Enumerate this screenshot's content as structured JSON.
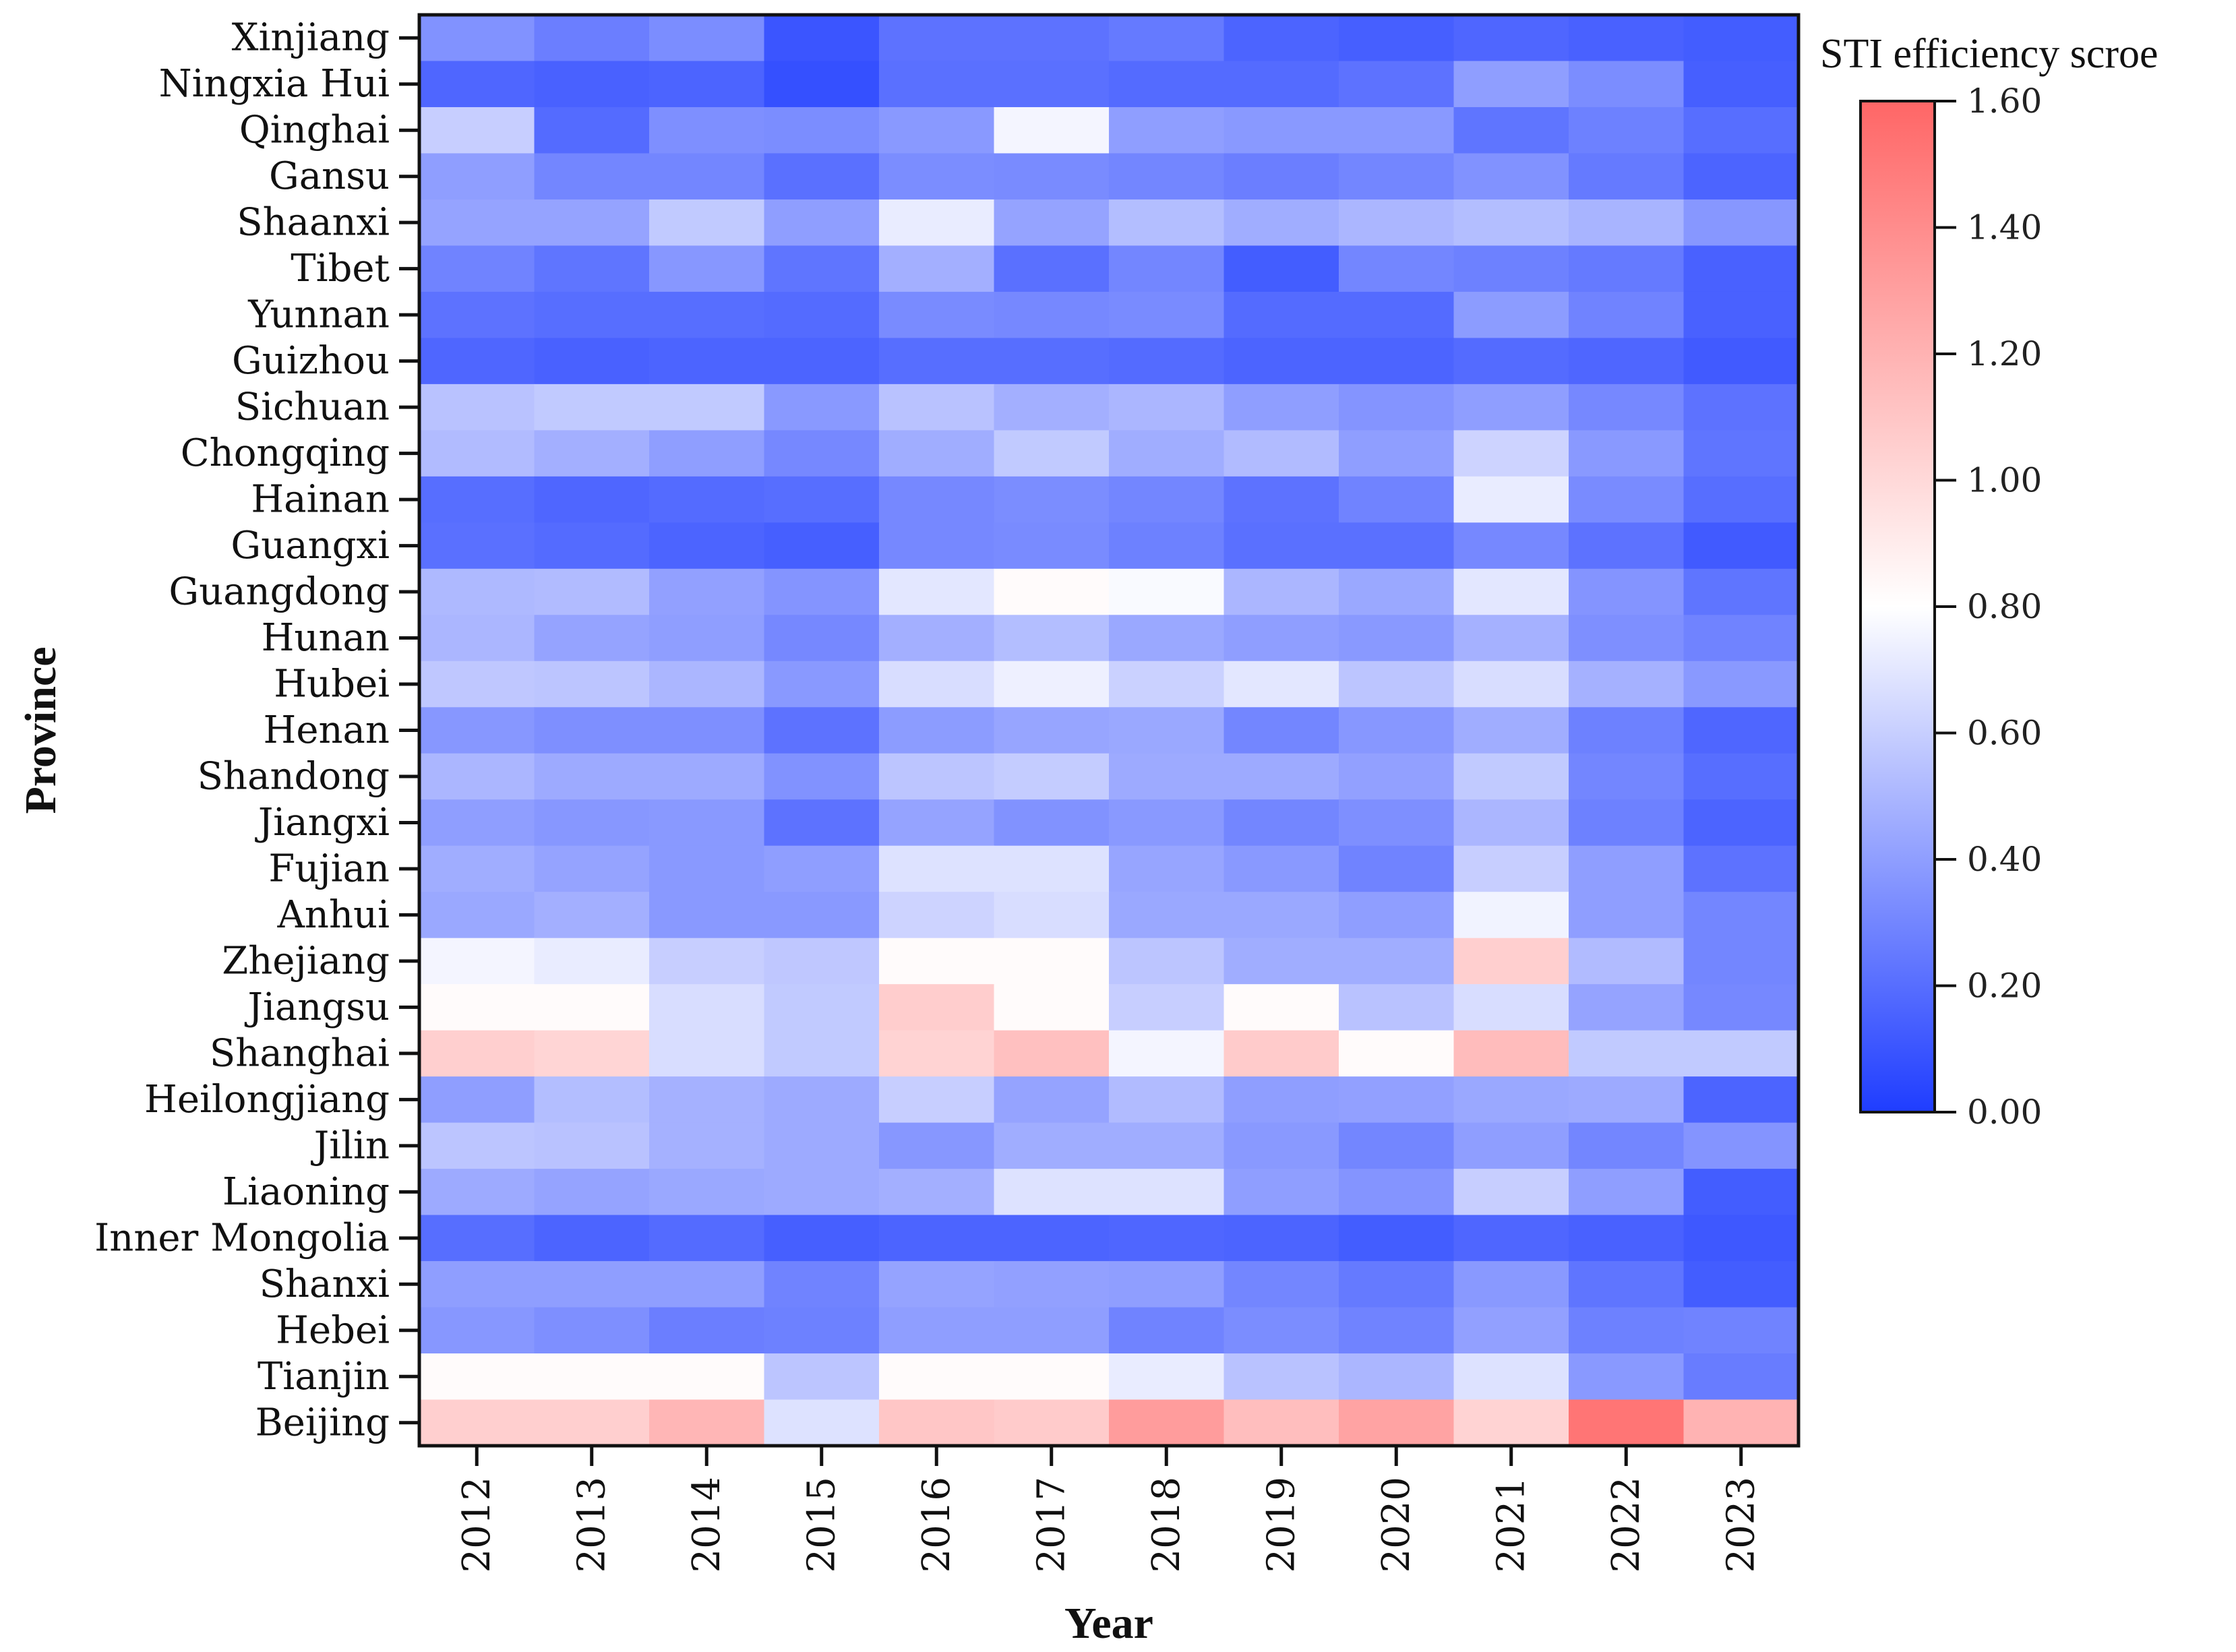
{
  "chart_data": {
    "type": "heatmap",
    "xlabel": "Year",
    "ylabel": "Province",
    "colorbar_title": "STI efficiency scroe",
    "colorbar_ticks": [
      "0.00",
      "0.20",
      "0.40",
      "0.60",
      "0.80",
      "1.00",
      "1.20",
      "1.40",
      "1.60"
    ],
    "colorbar_range": [
      0,
      1.6
    ],
    "colormap_stops": [
      {
        "value": 0.0,
        "color": "#1f3dff"
      },
      {
        "value": 0.8,
        "color": "#ffffff"
      },
      {
        "value": 1.6,
        "color": "#ff6666"
      }
    ],
    "x": [
      "2012",
      "2013",
      "2014",
      "2015",
      "2016",
      "2017",
      "2018",
      "2019",
      "2020",
      "2021",
      "2022",
      "2023"
    ],
    "y": [
      "Xinjiang",
      "Ningxia Hui",
      "Qinghai",
      "Gansu",
      "Shaanxi",
      "Tibet",
      "Yunnan",
      "Guizhou",
      "Sichuan",
      "Chongqing",
      "Hainan",
      "Guangxi",
      "Guangdong",
      "Hunan",
      "Hubei",
      "Henan",
      "Shandong",
      "Jiangxi",
      "Fujian",
      "Anhui",
      "Zhejiang",
      "Jiangsu",
      "Shanghai",
      "Heilongjiang",
      "Jilin",
      "Liaoning",
      "Inner Mongolia",
      "Shanxi",
      "Hebei",
      "Tianjin",
      "Beijing"
    ],
    "values": [
      [
        0.35,
        0.27,
        0.33,
        0.1,
        0.22,
        0.22,
        0.25,
        0.16,
        0.14,
        0.17,
        0.15,
        0.13
      ],
      [
        0.17,
        0.15,
        0.16,
        0.08,
        0.21,
        0.21,
        0.19,
        0.19,
        0.22,
        0.4,
        0.33,
        0.14
      ],
      [
        0.6,
        0.19,
        0.34,
        0.33,
        0.38,
        0.76,
        0.4,
        0.38,
        0.38,
        0.23,
        0.28,
        0.2
      ],
      [
        0.4,
        0.3,
        0.3,
        0.21,
        0.33,
        0.32,
        0.3,
        0.27,
        0.3,
        0.35,
        0.25,
        0.16
      ],
      [
        0.42,
        0.42,
        0.58,
        0.4,
        0.72,
        0.42,
        0.53,
        0.46,
        0.5,
        0.53,
        0.49,
        0.37
      ],
      [
        0.29,
        0.23,
        0.37,
        0.23,
        0.47,
        0.21,
        0.3,
        0.13,
        0.3,
        0.28,
        0.25,
        0.15
      ],
      [
        0.22,
        0.2,
        0.2,
        0.19,
        0.32,
        0.31,
        0.32,
        0.19,
        0.19,
        0.39,
        0.29,
        0.15
      ],
      [
        0.17,
        0.15,
        0.16,
        0.16,
        0.2,
        0.2,
        0.19,
        0.16,
        0.16,
        0.19,
        0.17,
        0.12
      ],
      [
        0.55,
        0.58,
        0.58,
        0.38,
        0.55,
        0.47,
        0.5,
        0.4,
        0.36,
        0.4,
        0.31,
        0.22
      ],
      [
        0.52,
        0.47,
        0.4,
        0.31,
        0.46,
        0.58,
        0.46,
        0.52,
        0.4,
        0.62,
        0.38,
        0.23
      ],
      [
        0.2,
        0.17,
        0.19,
        0.2,
        0.31,
        0.33,
        0.3,
        0.22,
        0.29,
        0.72,
        0.32,
        0.2
      ],
      [
        0.21,
        0.19,
        0.16,
        0.14,
        0.31,
        0.32,
        0.28,
        0.21,
        0.21,
        0.31,
        0.22,
        0.12
      ],
      [
        0.51,
        0.52,
        0.41,
        0.36,
        0.7,
        0.82,
        0.78,
        0.5,
        0.44,
        0.7,
        0.36,
        0.23
      ],
      [
        0.5,
        0.42,
        0.4,
        0.31,
        0.47,
        0.53,
        0.44,
        0.4,
        0.38,
        0.48,
        0.34,
        0.29
      ],
      [
        0.57,
        0.56,
        0.5,
        0.38,
        0.66,
        0.74,
        0.61,
        0.7,
        0.56,
        0.66,
        0.48,
        0.38
      ],
      [
        0.37,
        0.34,
        0.34,
        0.22,
        0.39,
        0.43,
        0.44,
        0.3,
        0.37,
        0.46,
        0.28,
        0.17
      ],
      [
        0.5,
        0.45,
        0.45,
        0.35,
        0.56,
        0.59,
        0.45,
        0.45,
        0.41,
        0.58,
        0.3,
        0.2
      ],
      [
        0.4,
        0.37,
        0.38,
        0.22,
        0.42,
        0.35,
        0.38,
        0.3,
        0.34,
        0.5,
        0.28,
        0.16
      ],
      [
        0.46,
        0.42,
        0.38,
        0.4,
        0.68,
        0.68,
        0.43,
        0.38,
        0.29,
        0.6,
        0.4,
        0.22
      ],
      [
        0.44,
        0.47,
        0.38,
        0.38,
        0.62,
        0.66,
        0.44,
        0.44,
        0.4,
        0.75,
        0.4,
        0.3
      ],
      [
        0.76,
        0.72,
        0.6,
        0.57,
        0.82,
        0.82,
        0.56,
        0.46,
        0.46,
        1.05,
        0.52,
        0.3
      ],
      [
        0.82,
        0.82,
        0.66,
        0.58,
        1.06,
        0.82,
        0.6,
        0.82,
        0.55,
        0.66,
        0.42,
        0.31
      ],
      [
        1.05,
        1.02,
        0.66,
        0.58,
        1.03,
        1.13,
        0.76,
        1.07,
        0.82,
        1.15,
        0.58,
        0.58
      ],
      [
        0.4,
        0.53,
        0.48,
        0.45,
        0.6,
        0.42,
        0.52,
        0.4,
        0.41,
        0.44,
        0.45,
        0.16
      ],
      [
        0.56,
        0.55,
        0.48,
        0.45,
        0.37,
        0.46,
        0.46,
        0.38,
        0.3,
        0.4,
        0.3,
        0.36
      ],
      [
        0.45,
        0.42,
        0.44,
        0.45,
        0.47,
        0.68,
        0.68,
        0.4,
        0.36,
        0.6,
        0.4,
        0.13
      ],
      [
        0.2,
        0.16,
        0.19,
        0.14,
        0.16,
        0.16,
        0.17,
        0.16,
        0.13,
        0.17,
        0.15,
        0.11
      ],
      [
        0.4,
        0.4,
        0.4,
        0.29,
        0.42,
        0.41,
        0.4,
        0.3,
        0.25,
        0.38,
        0.23,
        0.13
      ],
      [
        0.37,
        0.34,
        0.27,
        0.28,
        0.4,
        0.4,
        0.29,
        0.33,
        0.29,
        0.41,
        0.28,
        0.29
      ],
      [
        0.82,
        0.82,
        0.82,
        0.56,
        0.82,
        0.82,
        0.72,
        0.55,
        0.5,
        0.68,
        0.38,
        0.26
      ],
      [
        1.05,
        1.05,
        1.18,
        0.68,
        1.1,
        1.07,
        1.32,
        1.14,
        1.28,
        1.03,
        1.52,
        1.2
      ]
    ]
  }
}
